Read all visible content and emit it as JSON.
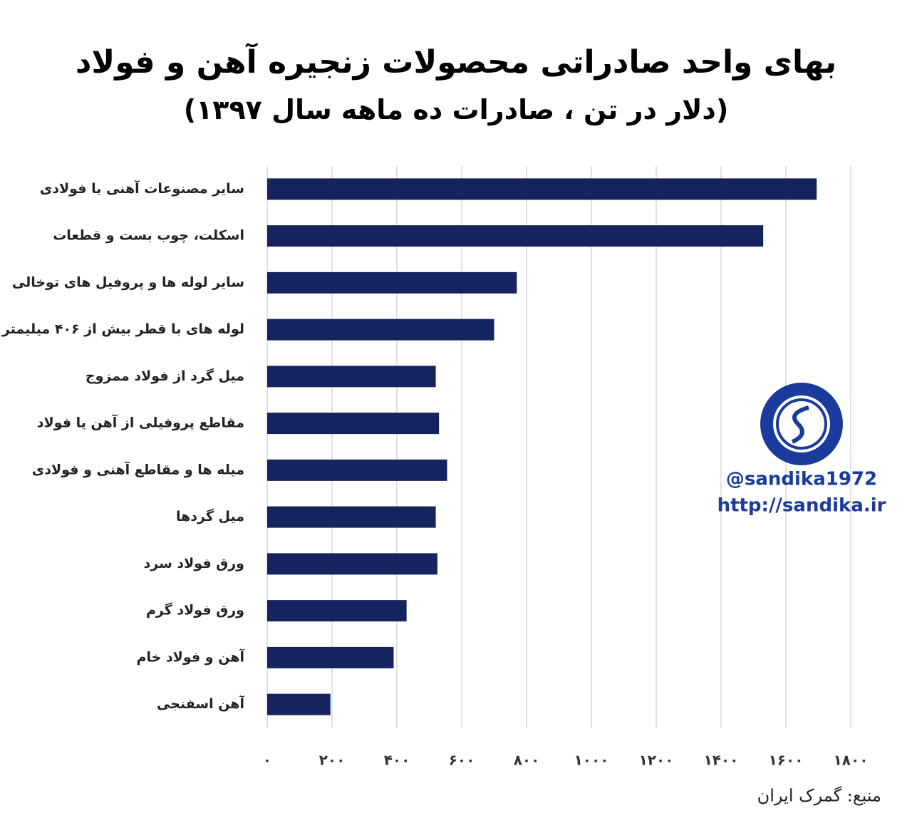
{
  "chart_data": {
    "type": "hbar",
    "title": "بهای واحد صادراتی محصولات زنجیره آهن و فولاد",
    "subtitle": "(دلار در تن ، صادرات ده ماهه سال ۱۳۹۷)",
    "source": "منبع: گمرک ایران",
    "categories": [
      "سایر مصنوعات آهنی یا فولادی",
      "اسکلت، چوب بست و قطعات",
      "سایر لوله ها و پروفیل های توخالی",
      "لوله های با قطر بیش از ۴۰۶ میلیمتر",
      "میل گرد از فولاد ممزوج",
      "مقاطع پروفیلی از آهن یا فولاد",
      "میله ها و مقاطع آهنی و فولادی",
      "میل گردها",
      "ورق فولاد سرد",
      "ورق فولاد گرم",
      "آهن و فولاد خام",
      "آهن اسفنجی"
    ],
    "values": [
      1695,
      1530,
      770,
      700,
      520,
      530,
      555,
      520,
      525,
      430,
      390,
      195
    ],
    "color": "#15235e",
    "xlim": [
      0,
      1800
    ],
    "xticks": [
      {
        "value": 0,
        "label": "۰"
      },
      {
        "value": 200,
        "label": "۲۰۰"
      },
      {
        "value": 400,
        "label": "۴۰۰"
      },
      {
        "value": 600,
        "label": "۶۰۰"
      },
      {
        "value": 800,
        "label": "۸۰۰"
      },
      {
        "value": 1000,
        "label": "۱۰۰۰"
      },
      {
        "value": 1200,
        "label": "۱۲۰۰"
      },
      {
        "value": 1400,
        "label": "۱۴۰۰"
      },
      {
        "value": 1600,
        "label": "۱۶۰۰"
      },
      {
        "value": 1800,
        "label": "۱۸۰۰"
      }
    ],
    "grid": true
  },
  "watermark": {
    "handle": "@sandika1972",
    "url": "http://sandika.ir"
  }
}
